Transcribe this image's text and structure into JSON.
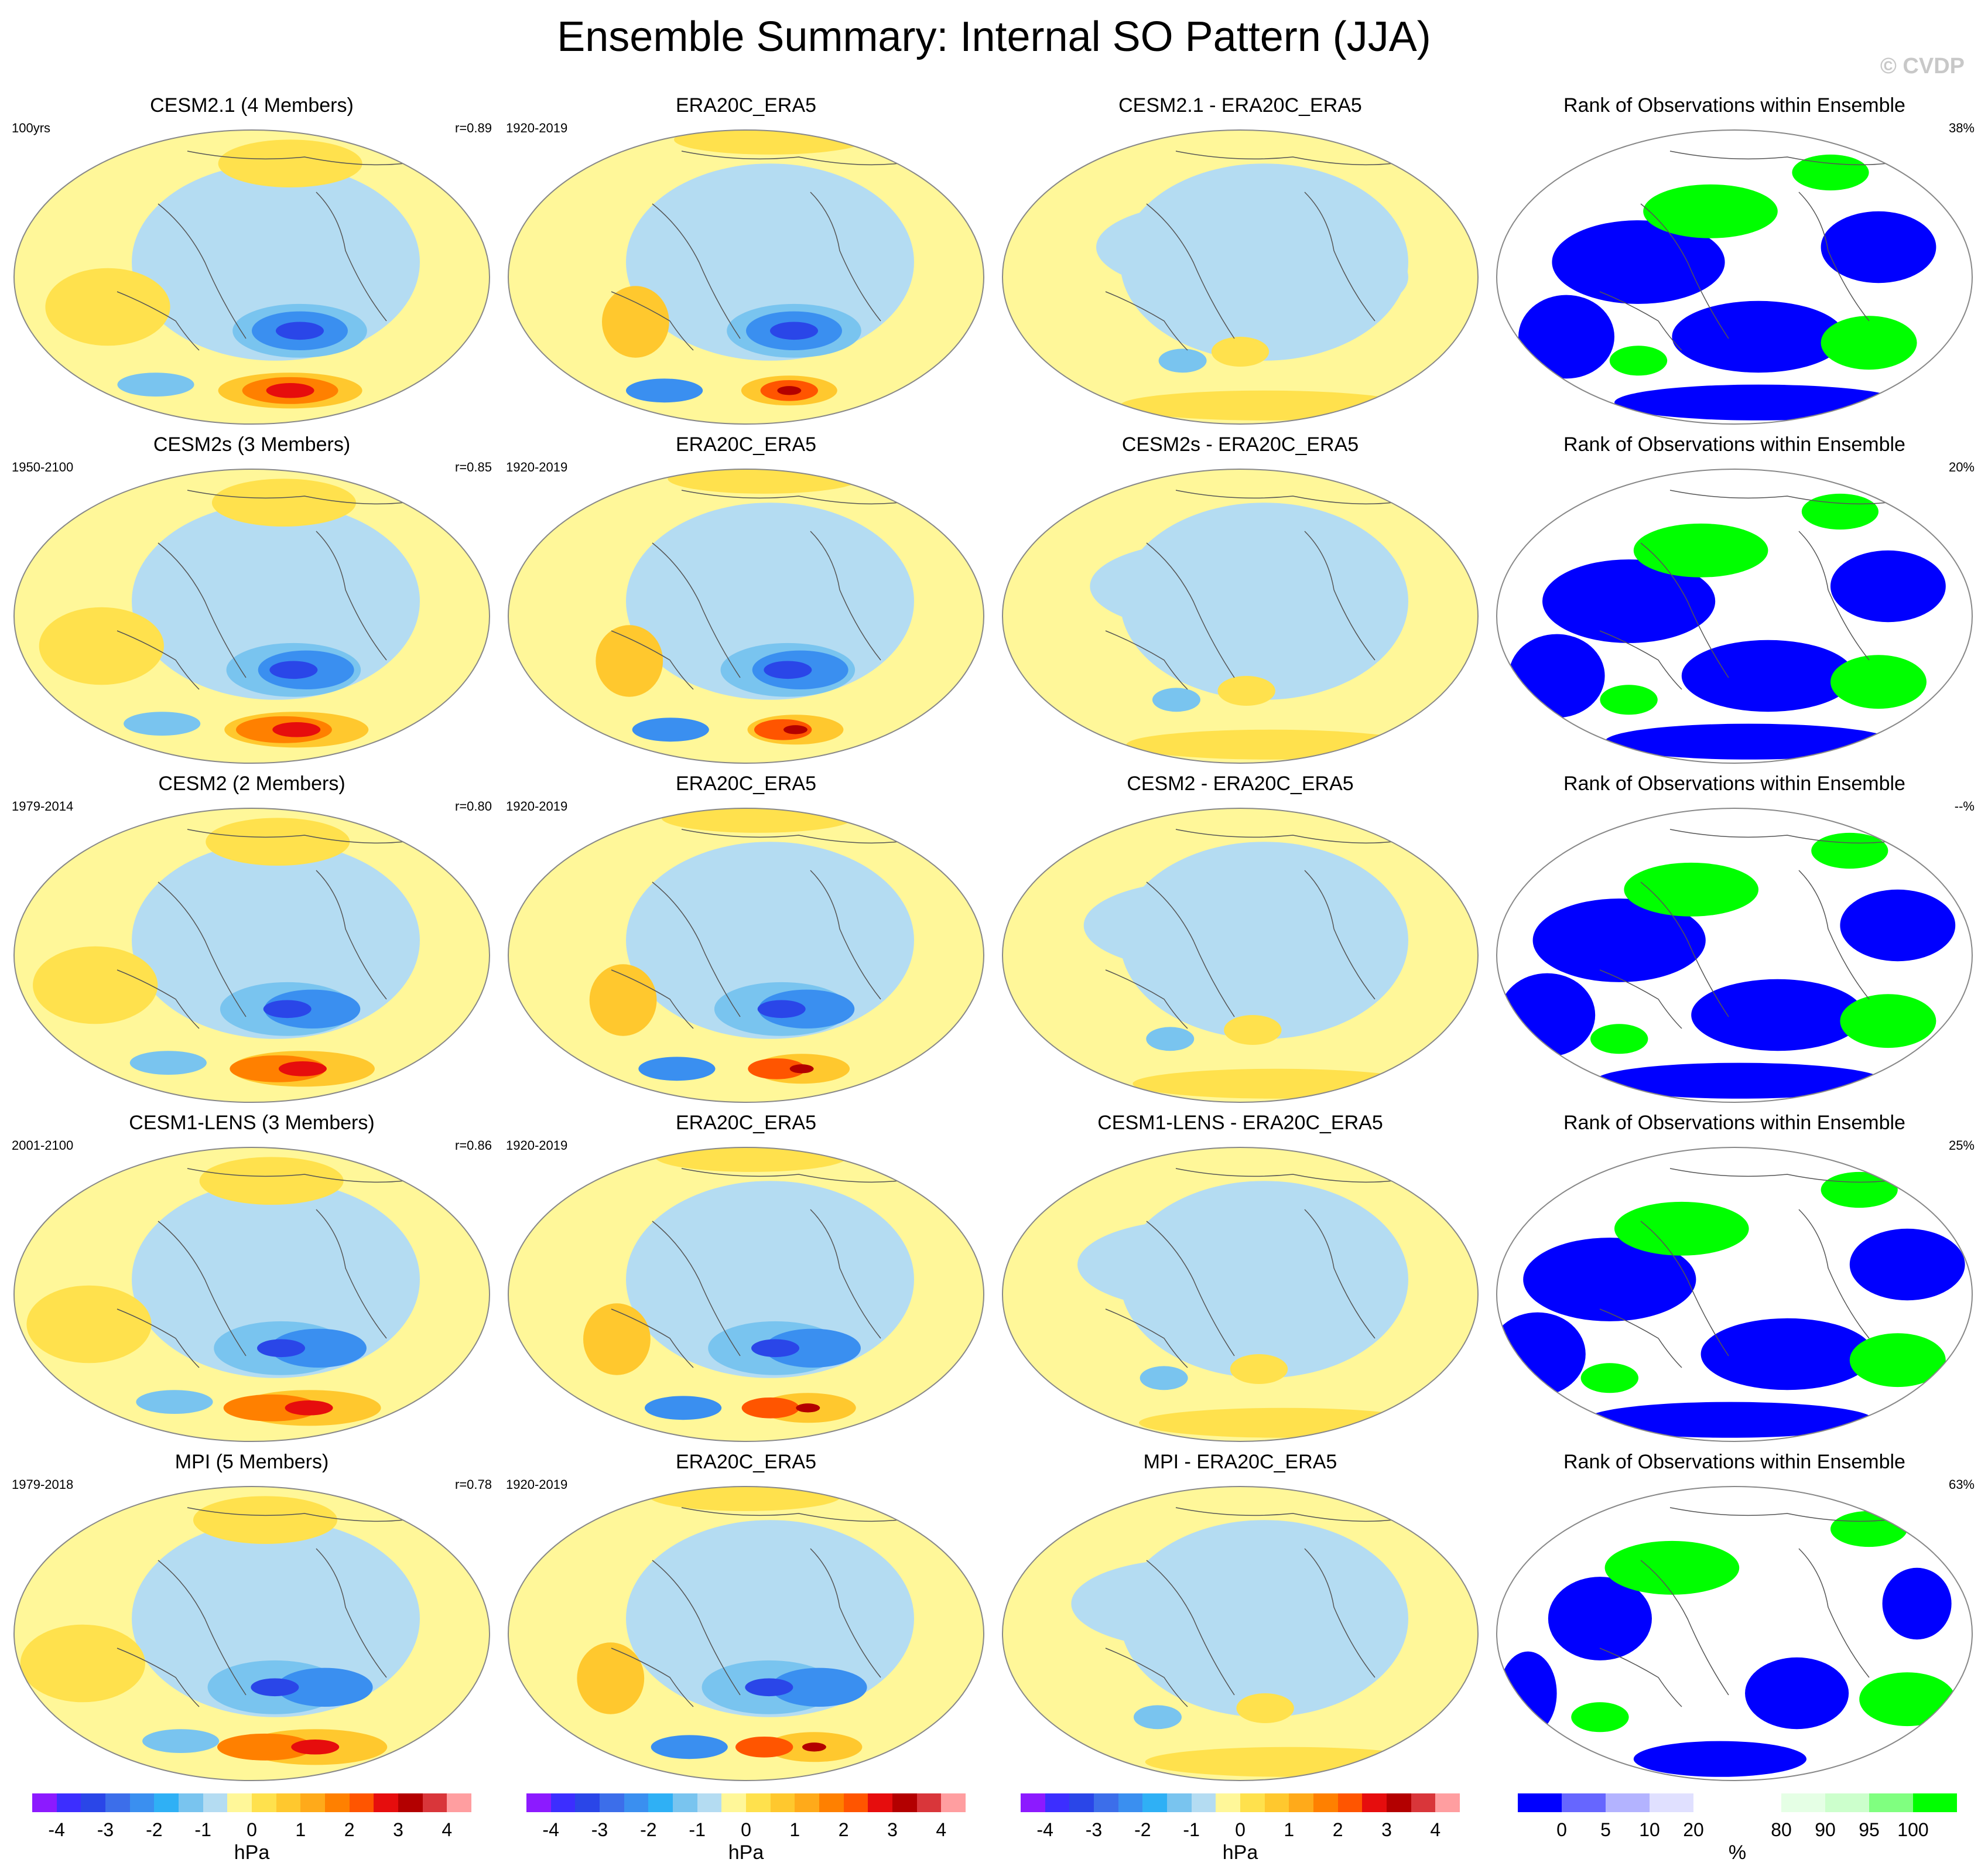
{
  "title": "Ensemble Summary: Internal SO Pattern (JJA)",
  "credit": "© CVDP",
  "colors": {
    "ocean_outline": "#888888",
    "coast": "#555555",
    "pattern_scale": [
      "#8c1aff",
      "#3c2eff",
      "#2a46e8",
      "#3c6eea",
      "#3a8ff0",
      "#2fb0f5",
      "#79c4ef",
      "#b4dcf2",
      "#fff799",
      "#ffe14d",
      "#ffc82e",
      "#ffaa1a",
      "#ff8000",
      "#ff5500",
      "#e60d0d",
      "#b30000",
      "#d9363a",
      "#ff9ea0"
    ],
    "rank_scale": [
      "#0000ff",
      "#6666ff",
      "#b3b3ff",
      "#e0e0ff",
      "#ffffff",
      "#ffffff",
      "#e5ffe5",
      "#ccffcc",
      "#80ff80",
      "#00ff00"
    ]
  },
  "rows": [
    {
      "model": {
        "title": "CESM2.1 (4 Members)",
        "left": "100yrs",
        "right": "r=0.89"
      },
      "obs": {
        "title": "ERA20C_ERA5",
        "left": "1920-2019",
        "right": ""
      },
      "diff": {
        "title": "CESM2.1 - ERA20C_ERA5",
        "left": "",
        "right": ""
      },
      "rank": {
        "title": "Rank of Observations within Ensemble",
        "left": "",
        "right": "38%"
      }
    },
    {
      "model": {
        "title": "CESM2s (3 Members)",
        "left": "1950-2100",
        "right": "r=0.85"
      },
      "obs": {
        "title": "ERA20C_ERA5",
        "left": "1920-2019",
        "right": ""
      },
      "diff": {
        "title": "CESM2s - ERA20C_ERA5",
        "left": "",
        "right": ""
      },
      "rank": {
        "title": "Rank of Observations within Ensemble",
        "left": "",
        "right": "20%"
      }
    },
    {
      "model": {
        "title": "CESM2 (2 Members)",
        "left": "1979-2014",
        "right": "r=0.80"
      },
      "obs": {
        "title": "ERA20C_ERA5",
        "left": "1920-2019",
        "right": ""
      },
      "diff": {
        "title": "CESM2 - ERA20C_ERA5",
        "left": "",
        "right": ""
      },
      "rank": {
        "title": "Rank of Observations within Ensemble",
        "left": "",
        "right": "--%"
      }
    },
    {
      "model": {
        "title": "CESM1-LENS (3 Members)",
        "left": "2001-2100",
        "right": "r=0.86"
      },
      "obs": {
        "title": "ERA20C_ERA5",
        "left": "1920-2019",
        "right": ""
      },
      "diff": {
        "title": "CESM1-LENS - ERA20C_ERA5",
        "left": "",
        "right": ""
      },
      "rank": {
        "title": "Rank of Observations within Ensemble",
        "left": "",
        "right": "25%"
      }
    },
    {
      "model": {
        "title": "MPI (5 Members)",
        "left": "1979-2018",
        "right": "r=0.78"
      },
      "obs": {
        "title": "ERA20C_ERA5",
        "left": "1920-2019",
        "right": ""
      },
      "diff": {
        "title": "MPI - ERA20C_ERA5",
        "left": "",
        "right": ""
      },
      "rank": {
        "title": "Rank of Observations within Ensemble",
        "left": "",
        "right": "63%"
      }
    }
  ],
  "colorbars": [
    {
      "unit": "hPa",
      "ticks": [
        "-4",
        "-3",
        "-2",
        "-1",
        "0",
        "1",
        "2",
        "3",
        "4"
      ]
    },
    {
      "unit": "hPa",
      "ticks": [
        "-4",
        "-3",
        "-2",
        "-1",
        "0",
        "1",
        "2",
        "3",
        "4"
      ]
    },
    {
      "unit": "hPa",
      "ticks": [
        "-4",
        "-3",
        "-2",
        "-1",
        "0",
        "1",
        "2",
        "3",
        "4"
      ]
    },
    {
      "unit": "%",
      "ticks": [
        "0",
        "5",
        "10",
        "20",
        "80",
        "90",
        "95",
        "100"
      ]
    }
  ]
}
